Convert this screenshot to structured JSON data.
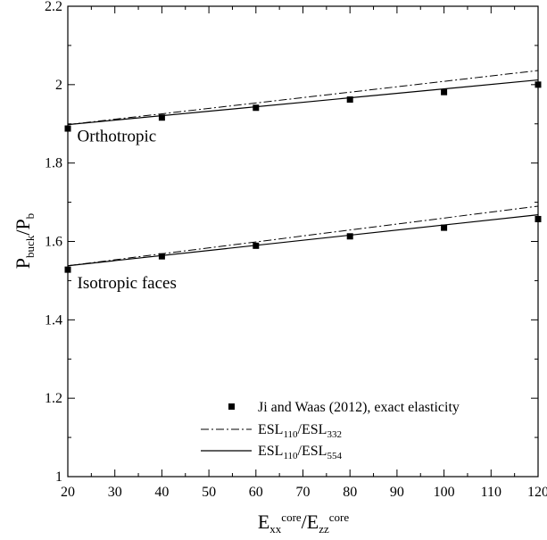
{
  "chart_data": {
    "type": "line",
    "xlabel": {
      "main": "E",
      "sub1": "xx",
      "sup1": "core",
      "sep": "/E",
      "sub2": "zz",
      "sup2": "core"
    },
    "ylabel": {
      "main": "P",
      "sub1": "buck",
      "sep": "/P",
      "sub2": "b"
    },
    "xlim": [
      20,
      120
    ],
    "ylim": [
      1,
      2.2
    ],
    "xticks": [
      20,
      30,
      40,
      50,
      60,
      70,
      80,
      90,
      100,
      110,
      120
    ],
    "yticks": [
      1,
      1.2,
      1.4,
      1.6,
      1.8,
      2,
      2.2
    ],
    "ytick_labels": [
      "1",
      "1.2",
      "1.4",
      "1.6",
      "1.8",
      "2",
      "2.2"
    ],
    "grid": false,
    "legend_placement": "bottom-right",
    "annotations": [
      {
        "text": "Orthotropic",
        "x": 22,
        "y": 1.855
      },
      {
        "text": "Isotropic faces",
        "x": 22,
        "y": 1.48
      }
    ],
    "series": [
      {
        "name": "Ji and Waas (2012), exact elasticity",
        "style": "markers",
        "groups": [
          {
            "x": [
              20,
              40,
              60,
              80,
              100,
              120
            ],
            "y": [
              1.888,
              1.916,
              1.941,
              1.962,
              1.981,
              2.0
            ]
          },
          {
            "x": [
              20,
              40,
              60,
              80,
              100,
              120
            ],
            "y": [
              1.528,
              1.562,
              1.589,
              1.613,
              1.635,
              1.657
            ]
          }
        ]
      },
      {
        "name": "ESL110/ESL332",
        "label": {
          "a": "ESL",
          "a_sub": "110",
          "sep": "/ESL",
          "b_sub": "332"
        },
        "style": "dash-dot",
        "groups": [
          {
            "x": [
              20,
              120
            ],
            "y": [
              1.898,
              2.036
            ]
          },
          {
            "x": [
              20,
              120
            ],
            "y": [
              1.538,
              1.69
            ]
          }
        ]
      },
      {
        "name": "ESL110/ESL554",
        "label": {
          "a": "ESL",
          "a_sub": "110",
          "sep": "/ESL",
          "b_sub": "554"
        },
        "style": "solid",
        "groups": [
          {
            "x": [
              20,
              120
            ],
            "y": [
              1.898,
              2.012
            ]
          },
          {
            "x": [
              20,
              120
            ],
            "y": [
              1.538,
              1.668
            ]
          }
        ]
      }
    ]
  }
}
